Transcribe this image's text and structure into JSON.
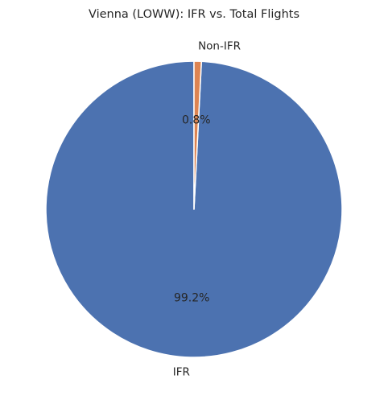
{
  "chart_data": {
    "type": "pie",
    "title": "Vienna (LOWW): IFR vs. Total Flights",
    "slices": [
      {
        "label": "IFR",
        "value": 99.2,
        "pct_label": "99.2%",
        "color": "#4c72b0"
      },
      {
        "label": "Non-IFR",
        "value": 0.8,
        "pct_label": "0.8%",
        "color": "#dd8452"
      }
    ],
    "start_angle_deg": 90,
    "direction": "counterclockwise",
    "legend": "none"
  }
}
